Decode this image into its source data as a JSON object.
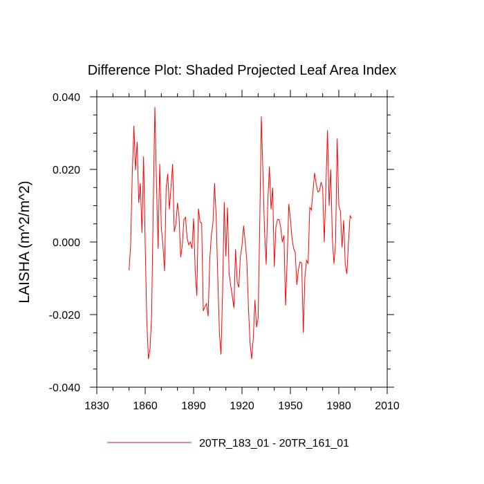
{
  "chart_data": {
    "type": "line",
    "title": "Difference Plot: Shaded Projected Leaf Area Index",
    "xlabel": "",
    "ylabel": "LAISHA  (m^2/m^2)",
    "xlim": [
      1830,
      2010
    ],
    "ylim": [
      -0.04,
      0.04
    ],
    "xticks": [
      "1830",
      "1860",
      "1890",
      "1920",
      "1950",
      "1980",
      "2010"
    ],
    "yticks": [
      "0.040",
      "0.020",
      "0.000",
      "-0.020",
      "-0.040"
    ],
    "x_tick_values": [
      1830,
      1860,
      1890,
      1920,
      1950,
      1980,
      2010
    ],
    "y_tick_values": [
      0.04,
      0.02,
      0.0,
      -0.02,
      -0.04
    ],
    "legend_position": "bottom-center",
    "series": [
      {
        "name": "20TR_183_01 - 20TR_161_01",
        "color": "#ff0000",
        "x_start": 1850,
        "x_step": 1,
        "values": [
          -0.0078,
          -0.0005,
          0.0188,
          0.032,
          0.0198,
          0.0276,
          0.0108,
          0.0162,
          0.0025,
          0.0236,
          -0.0005,
          -0.022,
          -0.0322,
          -0.0295,
          -0.02,
          0.0105,
          0.0372,
          0.016,
          -0.0018,
          0.0215,
          0.004,
          -0.001,
          -0.008,
          0.015,
          0.0188,
          0.009,
          0.015,
          0.0215,
          0.0028,
          0.0048,
          0.0108,
          0.0068,
          -0.0042,
          -0.0008,
          0.0062,
          0.0068,
          0.001,
          -0.0008,
          0.0,
          -0.0018,
          0.0065,
          -0.008,
          -0.0148,
          0.0092,
          0.0055,
          0.0052,
          -0.019,
          -0.0178,
          -0.017,
          -0.0205,
          -0.005,
          0.0018,
          0.0052,
          0.0162,
          0.0068,
          -0.0098,
          -0.025,
          -0.031,
          -0.013,
          0.011,
          -0.004,
          0.0095,
          -0.0085,
          -0.012,
          -0.015,
          -0.0182,
          -0.002,
          -0.011,
          -0.0125,
          -0.004,
          -0.001,
          0.0045,
          0.0,
          -0.0052,
          -0.018,
          -0.028,
          -0.0322,
          -0.0265,
          -0.016,
          -0.0235,
          -0.021,
          0.005,
          0.0346,
          0.0185,
          0.0025,
          -0.0062,
          0.011,
          0.0208,
          0.009,
          0.015,
          -0.0068,
          0.004,
          0.0062,
          0.0062,
          0.004,
          0.0,
          0.0018,
          -0.0175,
          -0.005,
          0.0105,
          0.0065,
          0.001,
          -0.0018,
          -0.0028,
          -0.0118,
          -0.0075,
          -0.0055,
          -0.0058,
          -0.025,
          -0.0095,
          -0.005,
          -0.006,
          0.0095,
          0.0088,
          0.014,
          0.019,
          0.016,
          0.0138,
          0.014,
          0.0165,
          0.015,
          0.0,
          0.015,
          0.0308,
          0.01,
          0.02,
          0.001,
          -0.006,
          0.0,
          0.0285,
          0.01,
          0.0085,
          -0.0015,
          0.006,
          -0.006,
          -0.0088,
          0.0,
          0.0072,
          0.0065
        ]
      }
    ]
  }
}
